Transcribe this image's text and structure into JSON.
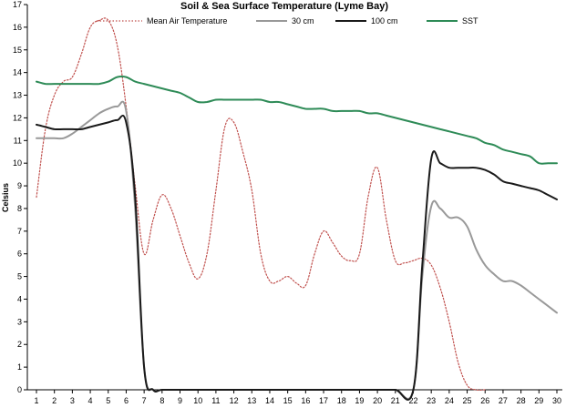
{
  "chart_data": {
    "type": "line",
    "title": "Soil & Sea Surface Temperature (Lyme Bay)",
    "xlabel": "",
    "ylabel": "Celsius",
    "xlim": [
      1,
      30
    ],
    "ylim": [
      0,
      17
    ],
    "x_ticks": [
      1,
      2,
      3,
      4,
      5,
      6,
      7,
      8,
      9,
      10,
      11,
      12,
      13,
      14,
      15,
      16,
      17,
      18,
      19,
      20,
      21,
      22,
      23,
      24,
      25,
      26,
      27,
      28,
      29,
      30
    ],
    "y_ticks": [
      0,
      1,
      2,
      3,
      4,
      5,
      6,
      7,
      8,
      9,
      10,
      11,
      12,
      13,
      14,
      15,
      16,
      17
    ],
    "grid": false,
    "legend_position": "top",
    "series": [
      {
        "name": "Mean Air Temperature",
        "color": "#c0504d",
        "style": "dotted",
        "x": [
          1,
          1.5,
          2,
          2.5,
          3,
          3.5,
          4,
          4.5,
          5,
          5.5,
          6,
          6.5,
          7,
          7.5,
          8,
          8.5,
          9,
          9.5,
          10,
          10.5,
          11,
          11.5,
          12,
          12.5,
          13,
          13.5,
          14,
          14.5,
          15,
          15.5,
          16,
          16.5,
          17,
          17.5,
          18,
          18.5,
          19,
          19.5,
          20,
          20.5,
          21,
          21.5,
          22,
          22.5,
          23,
          23.5,
          24,
          24.5,
          25,
          25.5,
          26
        ],
        "values": [
          8.5,
          11.5,
          13.0,
          13.6,
          13.8,
          14.8,
          16.0,
          16.3,
          16.3,
          15.2,
          12.5,
          9.0,
          6.0,
          7.5,
          8.6,
          8.0,
          6.8,
          5.6,
          4.9,
          6.0,
          8.8,
          11.6,
          11.8,
          10.5,
          8.8,
          6.0,
          4.8,
          4.8,
          5.0,
          4.7,
          4.6,
          6.0,
          7.0,
          6.5,
          5.9,
          5.7,
          6.0,
          8.6,
          9.8,
          7.5,
          5.7,
          5.6,
          5.7,
          5.8,
          5.5,
          4.5,
          3.0,
          1.2,
          0.2,
          0.0,
          0.0
        ]
      },
      {
        "name": "30 cm",
        "color": "#999999",
        "style": "solid",
        "x": [
          1,
          1.5,
          2,
          2.5,
          3,
          3.5,
          4,
          4.5,
          5,
          5.5,
          6,
          6.5,
          7,
          7.5,
          8,
          9,
          10,
          11,
          12,
          13,
          14,
          15,
          16,
          17,
          18,
          19,
          20,
          21,
          22,
          22.5,
          23,
          23.5,
          24,
          24.5,
          25,
          25.5,
          26,
          26.5,
          27,
          27.5,
          28,
          28.5,
          29,
          29.5,
          30
        ],
        "values": [
          11.1,
          11.1,
          11.1,
          11.1,
          11.3,
          11.6,
          11.9,
          12.2,
          12.4,
          12.5,
          12.3,
          8.0,
          1.0,
          0.0,
          0.0,
          0.0,
          0.0,
          0.0,
          0.0,
          0.0,
          0.0,
          0.0,
          0.0,
          0.0,
          0.0,
          0.0,
          0.0,
          0.0,
          0.0,
          5.0,
          8.1,
          8.0,
          7.6,
          7.6,
          7.2,
          6.2,
          5.5,
          5.1,
          4.8,
          4.8,
          4.6,
          4.3,
          4.0,
          3.7,
          3.4
        ]
      },
      {
        "name": "100 cm",
        "color": "#1a1a1a",
        "style": "solid",
        "x": [
          1,
          1.5,
          2,
          2.5,
          3,
          3.5,
          4,
          4.5,
          5,
          5.5,
          6,
          6.5,
          7,
          7.5,
          8,
          9,
          10,
          11,
          12,
          13,
          14,
          15,
          16,
          17,
          18,
          19,
          20,
          21,
          22,
          22.5,
          23,
          23.5,
          24,
          24.5,
          25,
          25.5,
          26,
          26.5,
          27,
          27.5,
          28,
          28.5,
          29,
          29.5,
          30
        ],
        "values": [
          11.7,
          11.6,
          11.5,
          11.5,
          11.5,
          11.5,
          11.6,
          11.7,
          11.8,
          11.9,
          11.8,
          8.5,
          1.0,
          0.0,
          0.0,
          0.0,
          0.0,
          0.0,
          0.0,
          0.0,
          0.0,
          0.0,
          0.0,
          0.0,
          0.0,
          0.0,
          0.0,
          0.0,
          0.0,
          5.5,
          10.2,
          10.0,
          9.8,
          9.8,
          9.8,
          9.8,
          9.7,
          9.5,
          9.2,
          9.1,
          9.0,
          8.9,
          8.8,
          8.6,
          8.4
        ]
      },
      {
        "name": "SST",
        "color": "#2e8b57",
        "style": "solid",
        "x": [
          1,
          1.5,
          2,
          2.5,
          3,
          3.5,
          4,
          4.5,
          5,
          5.5,
          6,
          6.5,
          7,
          7.5,
          8,
          8.5,
          9,
          9.5,
          10,
          10.5,
          11,
          11.5,
          12,
          12.5,
          13,
          13.5,
          14,
          14.5,
          15,
          15.5,
          16,
          16.5,
          17,
          17.5,
          18,
          18.5,
          19,
          19.5,
          20,
          20.5,
          21,
          21.5,
          22,
          22.5,
          23,
          23.5,
          24,
          24.5,
          25,
          25.5,
          26,
          26.5,
          27,
          27.5,
          28,
          28.5,
          29,
          29.5,
          30
        ],
        "values": [
          13.6,
          13.5,
          13.5,
          13.5,
          13.5,
          13.5,
          13.5,
          13.5,
          13.6,
          13.8,
          13.8,
          13.6,
          13.5,
          13.4,
          13.3,
          13.2,
          13.1,
          12.9,
          12.7,
          12.7,
          12.8,
          12.8,
          12.8,
          12.8,
          12.8,
          12.8,
          12.7,
          12.7,
          12.6,
          12.5,
          12.4,
          12.4,
          12.4,
          12.3,
          12.3,
          12.3,
          12.3,
          12.2,
          12.2,
          12.1,
          12.0,
          11.9,
          11.8,
          11.7,
          11.6,
          11.5,
          11.4,
          11.3,
          11.2,
          11.1,
          10.9,
          10.8,
          10.6,
          10.5,
          10.4,
          10.3,
          10.0,
          10.0,
          10.0
        ]
      }
    ]
  }
}
